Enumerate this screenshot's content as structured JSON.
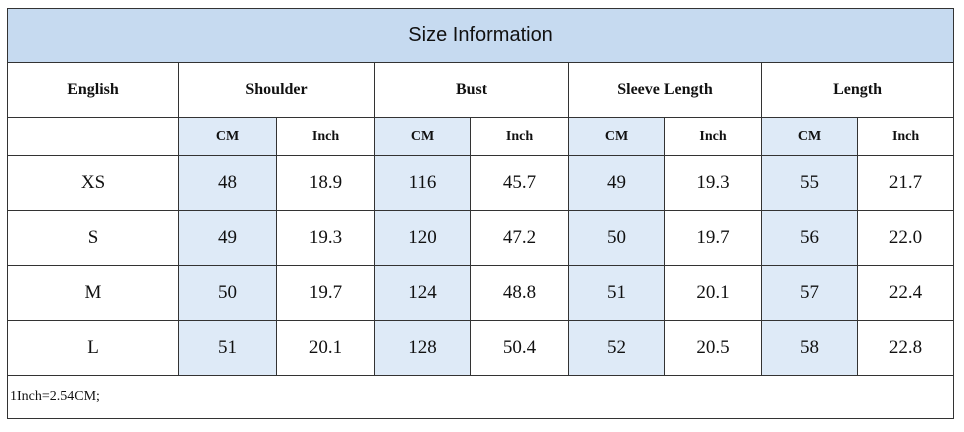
{
  "title": "Size Information",
  "headers": [
    "English",
    "Shoulder",
    "Bust",
    "Sleeve Length",
    "Length"
  ],
  "units": [
    "CM",
    "Inch",
    "CM",
    "Inch",
    "CM",
    "Inch",
    "CM",
    "Inch"
  ],
  "rows": [
    [
      "XS",
      "48",
      "18.9",
      "116",
      "45.7",
      "49",
      "19.3",
      "55",
      "21.7"
    ],
    [
      "S",
      "49",
      "19.3",
      "120",
      "47.2",
      "50",
      "19.7",
      "56",
      "22.0"
    ],
    [
      "M",
      "50",
      "19.7",
      "124",
      "48.8",
      "51",
      "20.1",
      "57",
      "22.4"
    ],
    [
      "L",
      "51",
      "20.1",
      "128",
      "50.4",
      "52",
      "20.5",
      "58",
      "22.8"
    ]
  ],
  "note": "1Inch=2.54CM;"
}
